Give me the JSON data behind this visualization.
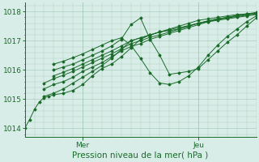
{
  "title": "",
  "xlabel": "Pression niveau de la mer( hPa )",
  "ylabel": "",
  "bg_color": "#d8ede8",
  "grid_color": "#aaccbb",
  "line_color": "#1a6b2a",
  "ylim": [
    1013.7,
    1018.3
  ],
  "xlim": [
    0,
    96
  ],
  "mer_x": 24,
  "jeu_x": 72,
  "yticks": [
    1014,
    1015,
    1016,
    1017,
    1018
  ],
  "xtick_labels": [
    "Mer",
    "Jeu"
  ],
  "xtick_positions": [
    24,
    72
  ],
  "series": [
    [
      0,
      1014.0,
      2,
      1014.3,
      4,
      1014.65,
      6,
      1014.9,
      8,
      1015.05,
      10,
      1015.1,
      12,
      1015.15,
      16,
      1015.2,
      20,
      1015.3,
      24,
      1015.5,
      28,
      1015.8,
      32,
      1016.05,
      36,
      1016.2,
      40,
      1016.45,
      44,
      1016.75,
      48,
      1017.05,
      52,
      1017.2,
      56,
      1017.3,
      60,
      1017.35,
      64,
      1017.4,
      68,
      1017.5,
      72,
      1017.6,
      76,
      1017.65,
      80,
      1017.7,
      84,
      1017.75,
      88,
      1017.8,
      92,
      1017.85,
      96,
      1017.9
    ],
    [
      8,
      1015.1,
      12,
      1015.2,
      16,
      1015.35,
      20,
      1015.55,
      24,
      1015.75,
      28,
      1015.95,
      32,
      1016.15,
      36,
      1016.4,
      40,
      1016.7,
      44,
      1017.0,
      48,
      1017.1,
      52,
      1017.2,
      56,
      1017.3,
      60,
      1017.4,
      64,
      1017.5,
      68,
      1017.6,
      72,
      1017.7,
      76,
      1017.75,
      80,
      1017.8,
      84,
      1017.85,
      88,
      1017.9,
      92,
      1017.92,
      96,
      1017.95
    ],
    [
      8,
      1015.35,
      12,
      1015.5,
      16,
      1015.6,
      20,
      1015.75,
      24,
      1015.95,
      28,
      1016.1,
      32,
      1016.25,
      36,
      1016.45,
      40,
      1016.65,
      44,
      1016.8,
      48,
      1016.9,
      52,
      1017.05,
      56,
      1017.15,
      60,
      1017.25,
      64,
      1017.35,
      68,
      1017.45,
      72,
      1017.55,
      76,
      1017.65,
      80,
      1017.73,
      84,
      1017.78,
      88,
      1017.83,
      92,
      1017.87,
      96,
      1017.92
    ],
    [
      8,
      1015.55,
      12,
      1015.7,
      16,
      1015.82,
      20,
      1015.95,
      24,
      1016.1,
      28,
      1016.25,
      32,
      1016.4,
      36,
      1016.55,
      40,
      1016.72,
      44,
      1016.9,
      48,
      1017.0,
      52,
      1017.12,
      56,
      1017.2,
      60,
      1017.3,
      64,
      1017.4,
      68,
      1017.5,
      72,
      1017.6,
      76,
      1017.68,
      80,
      1017.75,
      84,
      1017.8,
      88,
      1017.85,
      92,
      1017.9,
      96,
      1017.95
    ],
    [
      12,
      1015.8,
      16,
      1015.92,
      20,
      1016.05,
      24,
      1016.2,
      28,
      1016.35,
      32,
      1016.5,
      36,
      1016.65,
      40,
      1016.82,
      44,
      1017.0,
      48,
      1017.1,
      52,
      1017.2,
      56,
      1017.3,
      60,
      1017.38,
      64,
      1017.45,
      68,
      1017.52,
      72,
      1017.6,
      76,
      1017.68,
      80,
      1017.75,
      84,
      1017.8,
      88,
      1017.87,
      92,
      1017.92,
      96,
      1017.97
    ],
    [
      12,
      1016.0,
      16,
      1016.1,
      20,
      1016.2,
      24,
      1016.35,
      28,
      1016.5,
      32,
      1016.65,
      36,
      1016.82,
      40,
      1017.05,
      44,
      1017.55,
      48,
      1017.78,
      52,
      1017.05,
      56,
      1016.5,
      60,
      1015.85,
      64,
      1015.9,
      68,
      1015.95,
      72,
      1016.05,
      76,
      1016.35,
      80,
      1016.65,
      84,
      1016.95,
      88,
      1017.2,
      92,
      1017.5,
      96,
      1017.78
    ],
    [
      12,
      1016.2,
      16,
      1016.3,
      20,
      1016.42,
      24,
      1016.55,
      28,
      1016.7,
      32,
      1016.85,
      36,
      1017.0,
      40,
      1017.1,
      44,
      1016.85,
      48,
      1016.4,
      52,
      1015.9,
      56,
      1015.55,
      60,
      1015.5,
      64,
      1015.6,
      68,
      1015.8,
      72,
      1016.1,
      76,
      1016.5,
      80,
      1016.85,
      84,
      1017.15,
      88,
      1017.4,
      92,
      1017.65,
      96,
      1017.85
    ]
  ]
}
